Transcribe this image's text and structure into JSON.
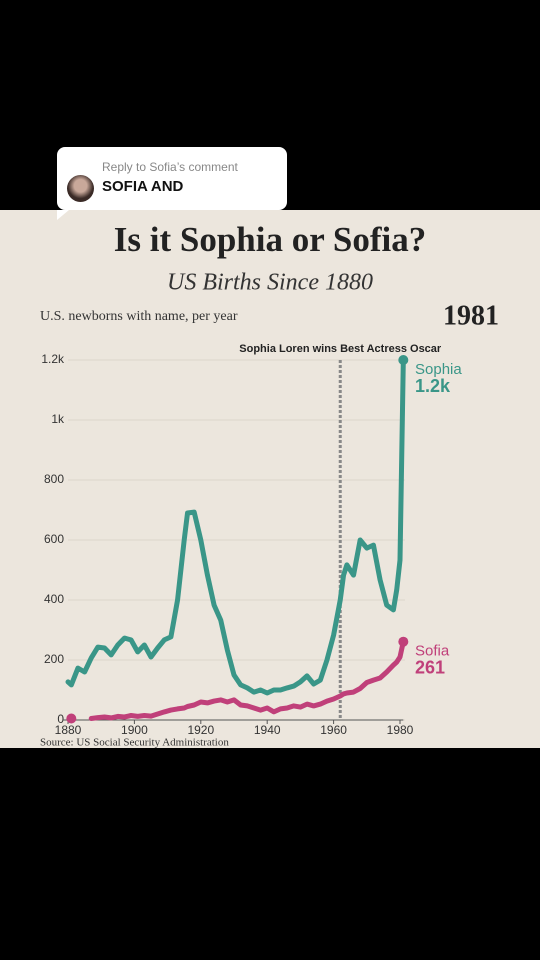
{
  "reply": {
    "heading": "Reply to Sofia’s comment",
    "comment": "SOFIA AND"
  },
  "chart_data": {
    "type": "line",
    "title": "Is it Sophia or Sofia?",
    "subtitle": "US Births Since 1880",
    "y_label": "U.S. newborns with name, per year",
    "current_year": "1981",
    "source": "Source: US Social Security Administration",
    "annotation": {
      "text": "Sophia Loren wins Best Actress Oscar",
      "x": 1962
    },
    "x": [
      1880,
      1881,
      1883,
      1885,
      1887,
      1889,
      1891,
      1893,
      1895,
      1897,
      1899,
      1901,
      1903,
      1905,
      1907,
      1909,
      1911,
      1913,
      1915,
      1916,
      1918,
      1920,
      1922,
      1924,
      1926,
      1928,
      1930,
      1932,
      1934,
      1936,
      1938,
      1940,
      1942,
      1944,
      1946,
      1948,
      1950,
      1952,
      1954,
      1956,
      1958,
      1960,
      1962,
      1963,
      1964,
      1966,
      1968,
      1970,
      1972,
      1974,
      1976,
      1978,
      1979,
      1980,
      1981
    ],
    "series": [
      {
        "name": "Sophia",
        "color": "#3a9688",
        "end_label": "1.2k",
        "values": [
          127,
          117,
          173,
          160,
          207,
          243,
          240,
          217,
          250,
          273,
          267,
          227,
          250,
          210,
          240,
          267,
          277,
          400,
          600,
          690,
          693,
          600,
          483,
          383,
          333,
          233,
          150,
          117,
          107,
          93,
          100,
          90,
          100,
          100,
          107,
          113,
          127,
          147,
          120,
          133,
          200,
          283,
          400,
          483,
          517,
          483,
          600,
          573,
          583,
          467,
          383,
          367,
          433,
          533,
          1200
        ]
      },
      {
        "name": "Sofia",
        "color": "#c0407a",
        "values": [
          null,
          5,
          null,
          null,
          5,
          8,
          10,
          7,
          12,
          10,
          15,
          12,
          15,
          13,
          20,
          27,
          33,
          37,
          40,
          45,
          50,
          60,
          57,
          63,
          67,
          60,
          67,
          50,
          47,
          40,
          33,
          40,
          27,
          37,
          40,
          47,
          43,
          53,
          47,
          53,
          63,
          70,
          80,
          87,
          90,
          93,
          105,
          125,
          133,
          140,
          160,
          183,
          193,
          210,
          261
        ]
      }
    ],
    "xlim": [
      1880,
      1981
    ],
    "xticks": [
      1880,
      1900,
      1920,
      1940,
      1960,
      1980
    ],
    "ylim": [
      0,
      1200
    ],
    "yticks": [
      0,
      200,
      400,
      600,
      800,
      {
        "value": 1000,
        "label": "1k"
      },
      {
        "value": 1200,
        "label": "1.2k"
      }
    ],
    "grid": true
  }
}
